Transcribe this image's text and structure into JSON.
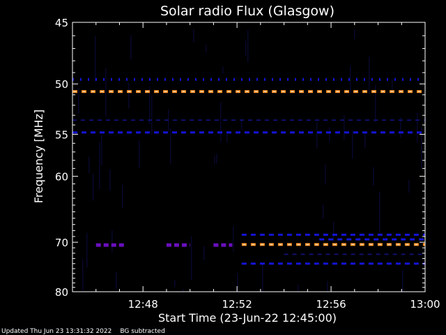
{
  "chart_data": {
    "type": "heatmap",
    "title": "Solar radio Flux (Glasgow)",
    "xlabel": "Start Time (23-Jun-22 12:45:00)",
    "ylabel": "Frequency [MHz]",
    "x_ticks": [
      "12:48",
      "12:52",
      "12:56",
      "13:00"
    ],
    "x_tick_minutes": [
      48,
      52,
      56,
      60
    ],
    "xlim_minutes": [
      45,
      60
    ],
    "y_ticks": [
      45,
      50,
      55,
      60,
      70,
      80
    ],
    "ylim": [
      45,
      80
    ],
    "y_scale": "reciprocal",
    "colors": {
      "background": "#000000",
      "axis": "#ffffff",
      "faint": "#0a0a40",
      "blue": "#1414d8",
      "violet": "#6a0fc0",
      "orange": "#ff8c1a",
      "peach": "#ffcc99"
    },
    "bands": [
      {
        "freq": 49.6,
        "start": 45.0,
        "end": 60.0,
        "level": "blue-ticks"
      },
      {
        "freq": 50.7,
        "start": 45.0,
        "end": 60.0,
        "level": "orange-dashed"
      },
      {
        "freq": 53.5,
        "start": 45.0,
        "end": 60.0,
        "level": "faint-dashed"
      },
      {
        "freq": 54.8,
        "start": 45.0,
        "end": 60.0,
        "level": "blue-dashed"
      },
      {
        "freq": 68.7,
        "start": 52.2,
        "end": 60.0,
        "level": "blue-dashed"
      },
      {
        "freq": 69.5,
        "start": 55.5,
        "end": 60.0,
        "level": "blue-dashed"
      },
      {
        "freq": 70.5,
        "start": 46.0,
        "end": 47.2,
        "level": "violet-dashed"
      },
      {
        "freq": 70.5,
        "start": 49.0,
        "end": 50.0,
        "level": "violet-dashed"
      },
      {
        "freq": 70.5,
        "start": 51.0,
        "end": 51.8,
        "level": "violet-dashed"
      },
      {
        "freq": 70.4,
        "start": 52.2,
        "end": 60.0,
        "level": "orange-dashed"
      },
      {
        "freq": 72.2,
        "start": 54.0,
        "end": 60.0,
        "level": "faint-dashed"
      },
      {
        "freq": 74.0,
        "start": 52.2,
        "end": 60.0,
        "level": "blue-dashed"
      }
    ]
  },
  "footer": {
    "updated": "Updated Thu Jun 23 13:31:32 2022",
    "note": "BG subtracted"
  }
}
